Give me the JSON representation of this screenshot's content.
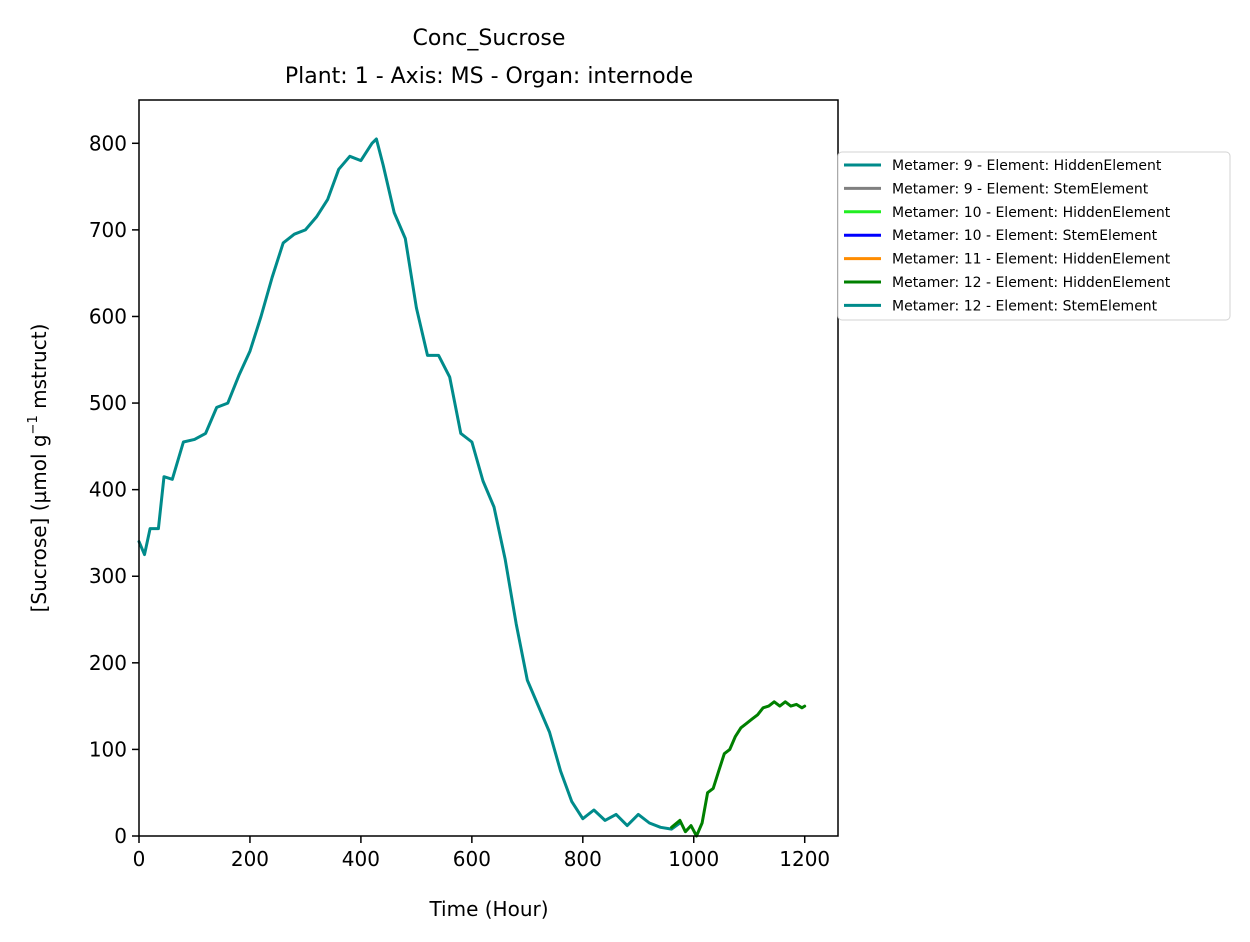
{
  "chart_data": {
    "type": "line",
    "title": "Conc_Sucrose",
    "subtitle": "Plant: 1 - Axis: MS - Organ: internode",
    "xlabel": "Time (Hour)",
    "ylabel_parts": [
      "[Sucrose] (µmol g",
      "−1",
      " mstruct)"
    ],
    "xlim": [
      0,
      1260
    ],
    "ylim": [
      0,
      850
    ],
    "x_ticks": [
      0,
      200,
      400,
      600,
      800,
      1000,
      1200
    ],
    "y_ticks": [
      0,
      100,
      200,
      300,
      400,
      500,
      600,
      700,
      800
    ],
    "grid": false,
    "legend_position": "right, outside plot",
    "series": [
      {
        "name": "Metamer: 9 - Element: HiddenElement",
        "color": "#008b8b",
        "x": [
          0,
          10,
          20,
          35,
          45,
          60,
          80,
          100,
          120,
          140,
          160,
          180,
          200,
          220,
          240,
          260,
          280,
          300,
          320,
          340,
          360,
          380,
          400,
          420,
          428,
          440,
          460,
          480,
          500,
          520,
          540,
          560,
          580,
          600,
          620,
          640,
          660,
          680,
          700,
          720,
          740,
          760,
          780,
          800,
          820,
          840,
          860,
          880,
          900,
          920,
          940,
          960,
          975
        ],
        "y": [
          340,
          325,
          355,
          355,
          415,
          412,
          455,
          458,
          465,
          495,
          500,
          532,
          560,
          600,
          645,
          685,
          695,
          700,
          715,
          735,
          770,
          785,
          780,
          800,
          805,
          775,
          720,
          690,
          610,
          555,
          555,
          530,
          465,
          455,
          410,
          380,
          320,
          245,
          180,
          150,
          120,
          75,
          40,
          20,
          30,
          18,
          25,
          12,
          25,
          15,
          10,
          8,
          15
        ]
      },
      {
        "name": "Metamer: 9 - Element: StemElement",
        "color": "#808080",
        "x": [],
        "y": []
      },
      {
        "name": "Metamer: 10 - Element: HiddenElement",
        "color": "#22ee22",
        "x": [],
        "y": []
      },
      {
        "name": "Metamer: 10 - Element: StemElement",
        "color": "#0000ff",
        "x": [],
        "y": []
      },
      {
        "name": "Metamer: 11 - Element: HiddenElement",
        "color": "#ff8c00",
        "x": [],
        "y": []
      },
      {
        "name": "Metamer: 12 - Element: HiddenElement",
        "color": "#008000",
        "x": [
          960,
          975,
          985,
          995,
          1005,
          1015,
          1025,
          1035,
          1045,
          1055,
          1065,
          1075,
          1085,
          1095,
          1105,
          1115,
          1125,
          1135,
          1145,
          1155,
          1165,
          1175,
          1185,
          1195,
          1200
        ],
        "y": [
          10,
          18,
          5,
          12,
          0,
          15,
          50,
          55,
          75,
          95,
          100,
          115,
          125,
          130,
          135,
          140,
          148,
          150,
          155,
          150,
          155,
          150,
          152,
          148,
          150
        ]
      },
      {
        "name": "Metamer: 12 - Element: StemElement",
        "color": "#008b8b",
        "x": [],
        "y": []
      }
    ]
  }
}
